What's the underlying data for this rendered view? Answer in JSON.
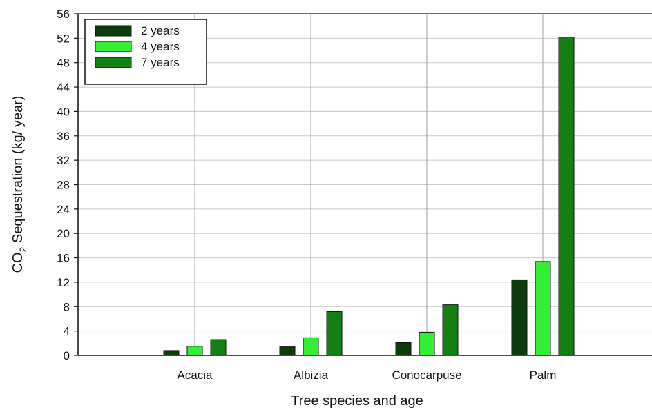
{
  "chart_data": {
    "type": "bar",
    "title": "",
    "xlabel": "Tree species and age",
    "ylabel": {
      "prefix": "CO",
      "subscript": "2",
      "suffix": " Sequestration (kg/ year)"
    },
    "categories": [
      "Acacia",
      "Albizia",
      "Conocarpuse",
      "Palm"
    ],
    "series": [
      {
        "name": "2 years",
        "color": "#0b3d0b",
        "values": [
          0.8,
          1.4,
          2.1,
          12.4
        ]
      },
      {
        "name": "4 years",
        "color": "#33ee33",
        "values": [
          1.5,
          2.9,
          3.8,
          15.4
        ]
      },
      {
        "name": "7 years",
        "color": "#128012",
        "values": [
          2.6,
          7.2,
          8.3,
          52.2
        ]
      }
    ],
    "ylim": [
      0,
      56
    ],
    "yticks": [
      0,
      4,
      8,
      12,
      16,
      20,
      24,
      28,
      32,
      36,
      40,
      44,
      48,
      52,
      56
    ],
    "grid": {
      "horizontal": true,
      "vertical_at_categories": true
    },
    "legend_position": "top-left"
  }
}
